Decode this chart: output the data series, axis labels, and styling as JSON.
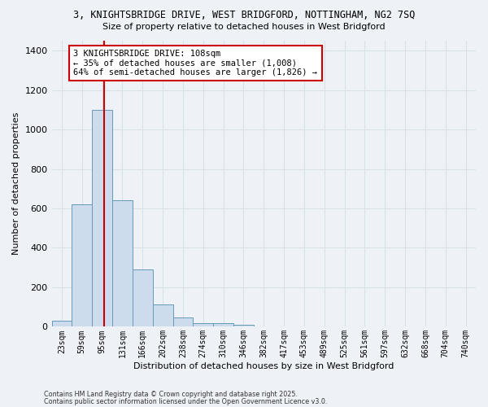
{
  "title_line1": "3, KNIGHTSBRIDGE DRIVE, WEST BRIDGFORD, NOTTINGHAM, NG2 7SQ",
  "title_line2": "Size of property relative to detached houses in West Bridgford",
  "xlabel": "Distribution of detached houses by size in West Bridgford",
  "ylabel": "Number of detached properties",
  "bar_color": "#ccdcec",
  "bar_edge_color": "#6699bb",
  "categories": [
    "23sqm",
    "59sqm",
    "95sqm",
    "131sqm",
    "166sqm",
    "202sqm",
    "238sqm",
    "274sqm",
    "310sqm",
    "346sqm",
    "382sqm",
    "417sqm",
    "453sqm",
    "489sqm",
    "525sqm",
    "561sqm",
    "597sqm",
    "632sqm",
    "668sqm",
    "704sqm",
    "740sqm"
  ],
  "values": [
    30,
    620,
    1100,
    640,
    290,
    115,
    47,
    20,
    20,
    10,
    0,
    0,
    0,
    0,
    0,
    0,
    0,
    0,
    0,
    0,
    0
  ],
  "ylim": [
    0,
    1450
  ],
  "yticks": [
    0,
    200,
    400,
    600,
    800,
    1000,
    1200,
    1400
  ],
  "annotation_text": "3 KNIGHTSBRIDGE DRIVE: 108sqm\n← 35% of detached houses are smaller (1,008)\n64% of semi-detached houses are larger (1,826) →",
  "annotation_box_color": "#ffffff",
  "annotation_box_edge": "#cc0000",
  "vline_color": "#cc0000",
  "vline_x": 2.1,
  "background_color": "#eef2f7",
  "grid_color": "#d8e0ea",
  "footnote1": "Contains HM Land Registry data © Crown copyright and database right 2025.",
  "footnote2": "Contains public sector information licensed under the Open Government Licence v3.0."
}
